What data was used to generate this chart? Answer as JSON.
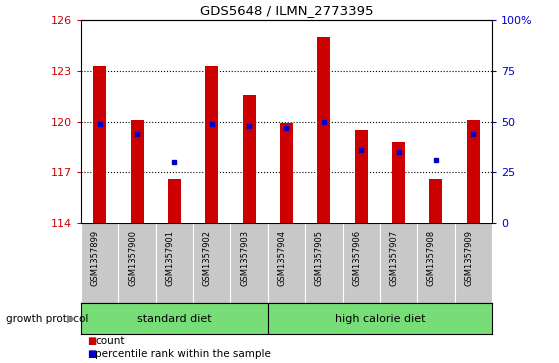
{
  "title": "GDS5648 / ILMN_2773395",
  "samples": [
    "GSM1357899",
    "GSM1357900",
    "GSM1357901",
    "GSM1357902",
    "GSM1357903",
    "GSM1357904",
    "GSM1357905",
    "GSM1357906",
    "GSM1357907",
    "GSM1357908",
    "GSM1357909"
  ],
  "counts": [
    123.3,
    120.1,
    116.6,
    123.3,
    121.6,
    119.9,
    125.0,
    119.5,
    118.8,
    116.6,
    120.1
  ],
  "percentile_ranks": [
    49,
    44,
    30,
    49,
    48,
    47,
    50,
    36,
    35,
    31,
    44
  ],
  "ymin": 114,
  "ymax": 126,
  "yticks": [
    114,
    117,
    120,
    123,
    126
  ],
  "y2min": 0,
  "y2max": 100,
  "y2ticks": [
    0,
    25,
    50,
    75,
    100
  ],
  "bar_color": "#cc0000",
  "dot_color": "#0000cc",
  "group_labels": [
    "standard diet",
    "high calorie diet"
  ],
  "group_ranges": [
    [
      0,
      4
    ],
    [
      5,
      10
    ]
  ],
  "group_color": "#77dd77",
  "tick_bg_color": "#c8c8c8",
  "protocol_label": "growth protocol",
  "legend_count": "count",
  "legend_pct": "percentile rank within the sample",
  "baseline": 114,
  "bar_width": 0.35
}
